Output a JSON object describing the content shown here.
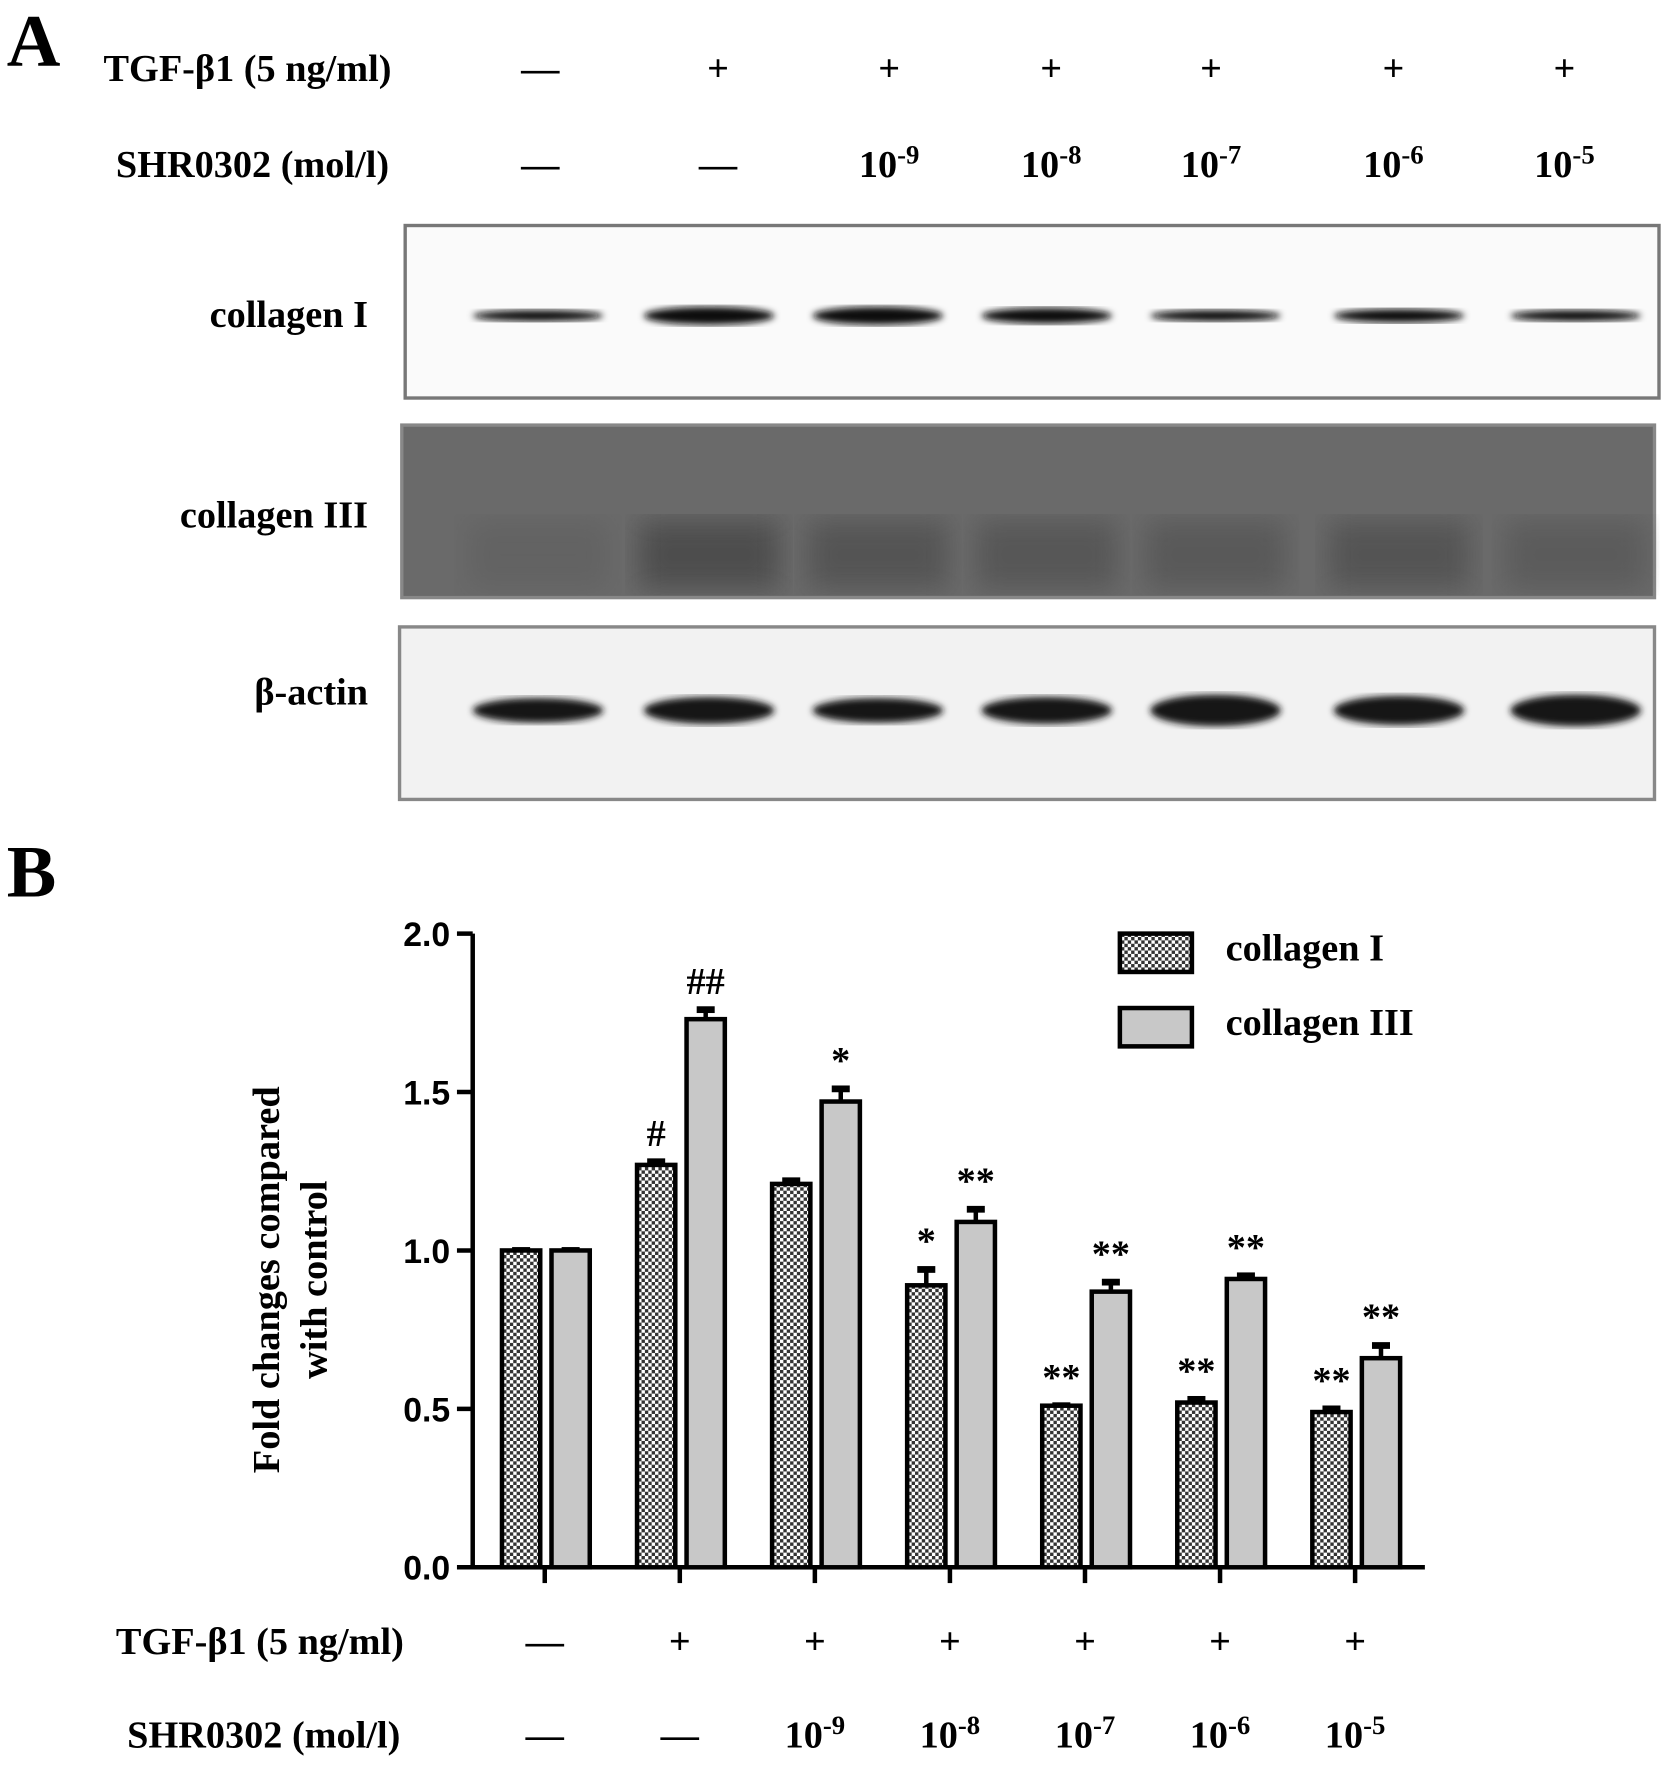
{
  "panel_a": {
    "label": "A",
    "condition_rows": [
      {
        "label": "TGF-β1  (5 ng/ml)",
        "values": [
          "—",
          "+",
          "+",
          "+",
          "+",
          "+",
          "+"
        ]
      },
      {
        "label": "SHR0302  (mol/l)",
        "values": [
          "—",
          "—",
          {
            "base": "10",
            "exp": "-9"
          },
          {
            "base": "10",
            "exp": "-8"
          },
          {
            "base": "10",
            "exp": "-7"
          },
          {
            "base": "10",
            "exp": "-6"
          },
          {
            "base": "10",
            "exp": "-5"
          }
        ]
      }
    ],
    "blots": [
      {
        "label": "collagen I"
      },
      {
        "label": "collagen III"
      },
      {
        "label": "β-actin"
      }
    ]
  },
  "chart_data": {
    "type": "bar",
    "panel_label": "B",
    "y_label": [
      "Fold changes compared",
      "with control"
    ],
    "ylim": [
      0,
      2
    ],
    "yticks": [
      {
        "value": 0,
        "label": "0.0"
      },
      0.5,
      {
        "value": 1,
        "label": "1.0"
      },
      1.5,
      {
        "value": 2,
        "label": "2.0"
      }
    ],
    "legend": "top-right",
    "series": [
      {
        "name": "collagen I",
        "color": "#333333",
        "pattern": "checkerboard",
        "values": [
          1.0,
          1.27,
          1.21,
          0.89,
          0.51,
          0.52,
          0.49
        ],
        "errors": [
          0,
          0.01,
          0.01,
          0.05,
          0,
          0.01,
          0.01
        ],
        "annotations": [
          null,
          "#",
          null,
          "*",
          "**",
          "**",
          "**"
        ]
      },
      {
        "name": "collagen III",
        "color": "#c8c8c8",
        "values": [
          1.0,
          1.73,
          1.47,
          1.09,
          0.87,
          0.91,
          0.66
        ],
        "errors": [
          0,
          0.03,
          0.04,
          0.04,
          0.03,
          0.01,
          0.04
        ],
        "annotations": [
          null,
          "##",
          "*",
          "**",
          "**",
          "**",
          "**"
        ]
      }
    ],
    "condition_rows": [
      {
        "label": "TGF-β1  (5 ng/ml)",
        "values": [
          "—",
          "+",
          "+",
          "+",
          "+",
          "+",
          "+"
        ]
      },
      {
        "label": "SHR0302  (mol/l)",
        "values": [
          "—",
          "—",
          {
            "base": "10",
            "exp": "-9"
          },
          {
            "base": "10",
            "exp": "-8"
          },
          {
            "base": "10",
            "exp": "-7"
          },
          {
            "base": "10",
            "exp": "-6"
          },
          {
            "base": "10",
            "exp": "-5"
          }
        ]
      }
    ]
  }
}
